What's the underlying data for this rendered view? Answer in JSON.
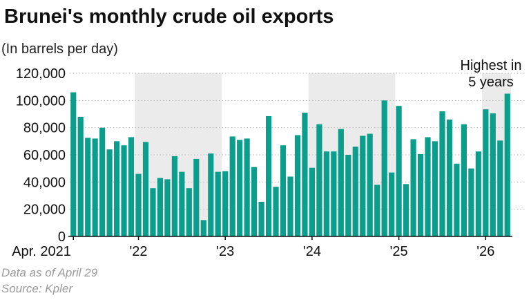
{
  "title": "Brunei's monthly crude oil exports",
  "subtitle": "(In barrels per day)",
  "footnotes": {
    "data_as_of": "Data as of April 29",
    "source": "Source: Kpler"
  },
  "colors": {
    "bar": "#0b9e8c",
    "shade": "#ebebeb",
    "grid": "#b5b5b5",
    "axis": "#111111",
    "text": "#111111"
  },
  "chart_data": {
    "type": "bar",
    "title": "Brunei's monthly crude oil exports",
    "ylabel": "(In barrels per day)",
    "ylim": [
      0,
      120000
    ],
    "yticks": [
      {
        "value": 0,
        "label": "0"
      },
      {
        "value": 20000,
        "label": "20,000"
      },
      {
        "value": 40000,
        "label": "40,000"
      },
      {
        "value": 60000,
        "label": "60,000"
      },
      {
        "value": 80000,
        "label": "80,000"
      },
      {
        "value": 100000,
        "label": "100,000"
      },
      {
        "value": 120000,
        "label": "120,000"
      }
    ],
    "grid": "horizontal dotted",
    "shaded_years": [
      "2022",
      "2024",
      "2026"
    ],
    "xticks": [
      {
        "label": "Apr. 2021",
        "month": "2021-04"
      },
      {
        "label": "'22",
        "month": "2022-01"
      },
      {
        "label": "'23",
        "month": "2023-01"
      },
      {
        "label": "'24",
        "month": "2024-01"
      },
      {
        "label": "'25",
        "month": "2025-01"
      },
      {
        "label": "'26",
        "month": "2026-01"
      }
    ],
    "categories": [
      "2021-04",
      "2021-05",
      "2021-06",
      "2021-07",
      "2021-08",
      "2021-09",
      "2021-10",
      "2021-11",
      "2021-12",
      "2022-01",
      "2022-02",
      "2022-03",
      "2022-04",
      "2022-05",
      "2022-06",
      "2022-07",
      "2022-08",
      "2022-09",
      "2022-10",
      "2022-11",
      "2022-12",
      "2023-01",
      "2023-02",
      "2023-03",
      "2023-04",
      "2023-05",
      "2023-06",
      "2023-07",
      "2023-08",
      "2023-09",
      "2023-10",
      "2023-11",
      "2023-12",
      "2024-01",
      "2024-02",
      "2024-03",
      "2024-04",
      "2024-05",
      "2024-06",
      "2024-07",
      "2024-08",
      "2024-09",
      "2024-10",
      "2024-11",
      "2024-12",
      "2025-01",
      "2025-02",
      "2025-03",
      "2025-04",
      "2025-05",
      "2025-06",
      "2025-07",
      "2025-08",
      "2025-09",
      "2025-10",
      "2025-11",
      "2025-12",
      "2026-01",
      "2026-02",
      "2026-03",
      "2026-04"
    ],
    "values": [
      106000,
      88000,
      72500,
      72000,
      80000,
      64000,
      70000,
      67000,
      73000,
      46000,
      69500,
      35500,
      43000,
      42000,
      59000,
      47500,
      35500,
      57000,
      12000,
      61000,
      47500,
      48000,
      73500,
      71000,
      72000,
      51000,
      25500,
      88500,
      36500,
      67000,
      44000,
      74500,
      91000,
      50500,
      82500,
      62500,
      62500,
      79000,
      60000,
      66000,
      74000,
      75500,
      38000,
      100000,
      47000,
      96000,
      38500,
      71500,
      60500,
      73000,
      70000,
      92000,
      86000,
      53500,
      82500,
      50000,
      62500,
      93500,
      90500,
      70500,
      105000
    ],
    "annotations": [
      "Highest in",
      "5 years"
    ]
  }
}
